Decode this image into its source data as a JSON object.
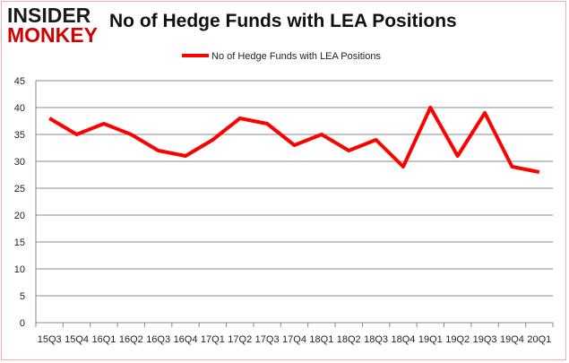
{
  "logo": {
    "line1": "INSIDER",
    "line2": "MONKEY"
  },
  "chart_data": {
    "type": "line",
    "title": "No of Hedge Funds with LEA Positions",
    "categories": [
      "15Q3",
      "15Q4",
      "16Q1",
      "16Q2",
      "16Q3",
      "16Q4",
      "17Q1",
      "17Q2",
      "17Q3",
      "17Q4",
      "18Q1",
      "18Q2",
      "18Q3",
      "18Q4",
      "19Q1",
      "19Q2",
      "19Q3",
      "19Q4",
      "20Q1"
    ],
    "series": [
      {
        "name": "No of Hedge Funds with LEA Positions",
        "color": "#ff0000",
        "values": [
          38,
          35,
          37,
          35,
          32,
          31,
          34,
          38,
          37,
          33,
          35,
          32,
          34,
          29,
          40,
          31,
          39,
          29,
          28
        ]
      }
    ],
    "ylim": [
      0,
      45
    ],
    "yticks": [
      0,
      5,
      10,
      15,
      20,
      25,
      30,
      35,
      40,
      45
    ],
    "grid": true,
    "legend": "top-center"
  }
}
